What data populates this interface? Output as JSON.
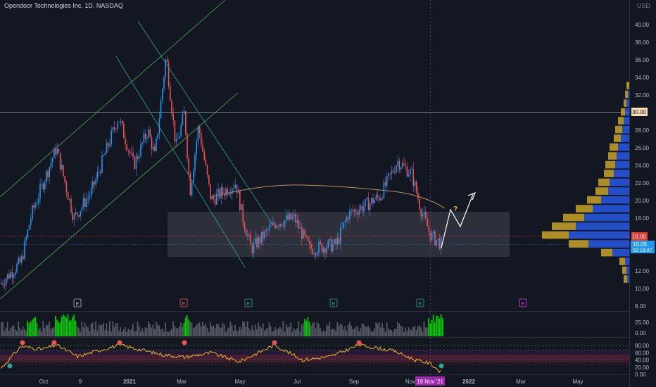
{
  "header": {
    "symbol_title": "Opendoor Technologies Inc, 1D, NASDAQ",
    "currency": "USD"
  },
  "price_axis": {
    "ticks": [
      "40.00",
      "38.00",
      "36.00",
      "34.00",
      "32.00",
      "28.00",
      "26.00",
      "24.00",
      "22.00",
      "20.00",
      "18.00",
      "12.00",
      "10.00",
      "8.00"
    ],
    "tick_values": [
      40,
      38,
      36,
      34,
      32,
      28,
      26,
      24,
      22,
      20,
      18,
      12,
      10,
      8
    ],
    "labels": {
      "resistance": "30.00",
      "alert": "16.00",
      "last_price": "15.05",
      "countdown": "02:19:07"
    }
  },
  "volume_axis": {
    "ticks": [
      "25.00",
      "0.00"
    ]
  },
  "rsi_axis": {
    "ticks": [
      "80.00",
      "60.00",
      "40.00",
      "20.00",
      "0.00"
    ],
    "tick_values": [
      80,
      60,
      40,
      20,
      0
    ]
  },
  "time_axis": {
    "ticks": [
      "Oct",
      "9",
      "2021",
      "Mar",
      "May",
      "Jul",
      "Sep",
      "Nov",
      "2022",
      "Mar",
      "May"
    ],
    "current_date": "19 Nov '21"
  },
  "annotations": {
    "question_mark": "?",
    "earnings_marker": "E"
  },
  "colors": {
    "background": "#131722",
    "up": "#2196f3",
    "down": "#ef5350",
    "volume_bar": "#787b86",
    "volume_high": "#00e600",
    "rsi_line": "#f0b429",
    "range_box": "#434651",
    "channel": "#4caf50",
    "channel_down": "#26a69a",
    "ma_line": "#b9925c",
    "projection": "#ffffff",
    "vp_up": "#2962ff",
    "vp_down": "#c9a227",
    "last_price_tag": "#2196f3",
    "alert_tag": "#e53935",
    "resistance_tag": "#f5deb3",
    "date_tag": "#9c27b0"
  },
  "chart_data": {
    "type": "candlestick",
    "title": "Opendoor Technologies Inc, 1D, NASDAQ",
    "price_scale": {
      "min": 8,
      "max": 41
    },
    "rsi_scale": {
      "min": 0,
      "max": 100
    },
    "closing_price_path": [
      {
        "x": "Sep 2020",
        "y": 10.5
      },
      {
        "x": "Oct 2020",
        "y": 13.0
      },
      {
        "x": "Oct 2020",
        "y": 18.5
      },
      {
        "x": "Oct 2020",
        "y": 26.0
      },
      {
        "x": "Nov 2020",
        "y": 18.0
      },
      {
        "x": "Dec 2020",
        "y": 21.0
      },
      {
        "x": "Dec 2020",
        "y": 29.5
      },
      {
        "x": "Jan 2021",
        "y": 24.0
      },
      {
        "x": "Jan 2021",
        "y": 28.0
      },
      {
        "x": "Feb 2021",
        "y": 25.0
      },
      {
        "x": "Feb 2021",
        "y": 36.5
      },
      {
        "x": "Feb 2021",
        "y": 26.0
      },
      {
        "x": "Mar 2021",
        "y": 30.0
      },
      {
        "x": "Mar 2021",
        "y": 21.0
      },
      {
        "x": "Mar 2021",
        "y": 28.5
      },
      {
        "x": "Apr 2021",
        "y": 20.0
      },
      {
        "x": "Apr 2021",
        "y": 22.0
      },
      {
        "x": "May 2021",
        "y": 18.0
      },
      {
        "x": "May 2021",
        "y": 14.5
      },
      {
        "x": "Jun 2021",
        "y": 17.5
      },
      {
        "x": "Jun 2021",
        "y": 18.0
      },
      {
        "x": "Jul 2021",
        "y": 14.5
      },
      {
        "x": "Aug 2021",
        "y": 15.0
      },
      {
        "x": "Aug 2021",
        "y": 18.5
      },
      {
        "x": "Sep 2021",
        "y": 19.5
      },
      {
        "x": "Sep 2021",
        "y": 20.5
      },
      {
        "x": "Oct 2021",
        "y": 24.5
      },
      {
        "x": "Oct 2021",
        "y": 23.0
      },
      {
        "x": "Nov 2021",
        "y": 19.0
      },
      {
        "x": "Nov 2021",
        "y": 16.0
      },
      {
        "x": "Nov 2021",
        "y": 15.05
      }
    ],
    "range_box": {
      "price_low": 13.7,
      "price_high": 18.7
    },
    "horizontal_levels": [
      30.0,
      16.0,
      15.05
    ],
    "projection_path": [
      {
        "x": "Nov 2021",
        "y": 15.05
      },
      {
        "x": "Dec 2021",
        "y": 18.0
      },
      {
        "x": "Dec 2021",
        "y": 17.0
      },
      {
        "x": "Dec 2021",
        "y": 21.0
      }
    ],
    "earnings_dates": [
      "Nov 2020",
      "Feb 2021",
      "May 2021",
      "Aug 2021",
      "Nov 2021",
      "Feb 2022"
    ],
    "rsi_levels": [
      70,
      60,
      40,
      30
    ],
    "rsi_current": 5
  }
}
